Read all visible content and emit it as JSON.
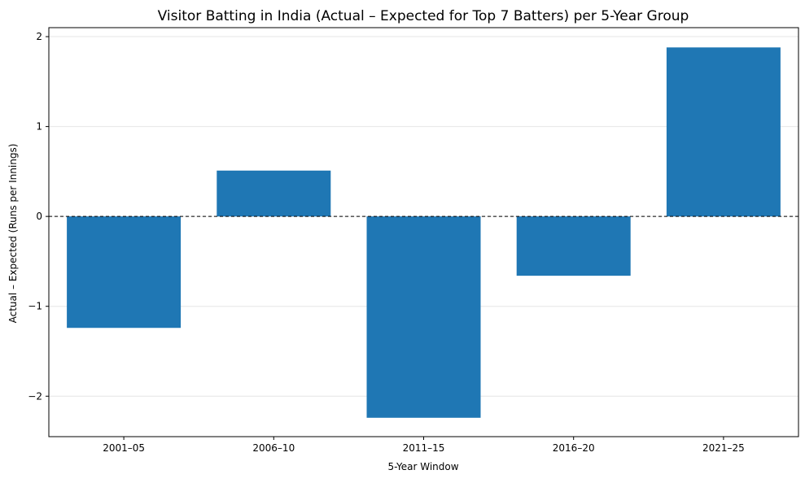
{
  "chart_data": {
    "type": "bar",
    "title": "Visitor Batting in India (Actual – Expected for Top 7 Batters) per 5-Year Group",
    "xlabel": "5-Year Window",
    "ylabel": "Actual – Expected (Runs per Innings)",
    "categories": [
      "2001–05",
      "2006–10",
      "2011–15",
      "2016–20",
      "2021–25"
    ],
    "values": [
      -1.24,
      0.51,
      -2.24,
      -0.66,
      1.88
    ],
    "ylim": [
      -2.45,
      2.1
    ],
    "yticks": [
      -2,
      -1,
      0,
      1,
      2
    ],
    "ytick_labels": [
      "−2",
      "−1",
      "0",
      "1",
      "2"
    ],
    "grid": "y",
    "reference_line": {
      "y": 0,
      "style": "dashed"
    },
    "colors": {
      "bar": "#1f77b4",
      "grid": "#e6e6e6",
      "axis": "#000000",
      "reference_line": "#000000"
    }
  }
}
